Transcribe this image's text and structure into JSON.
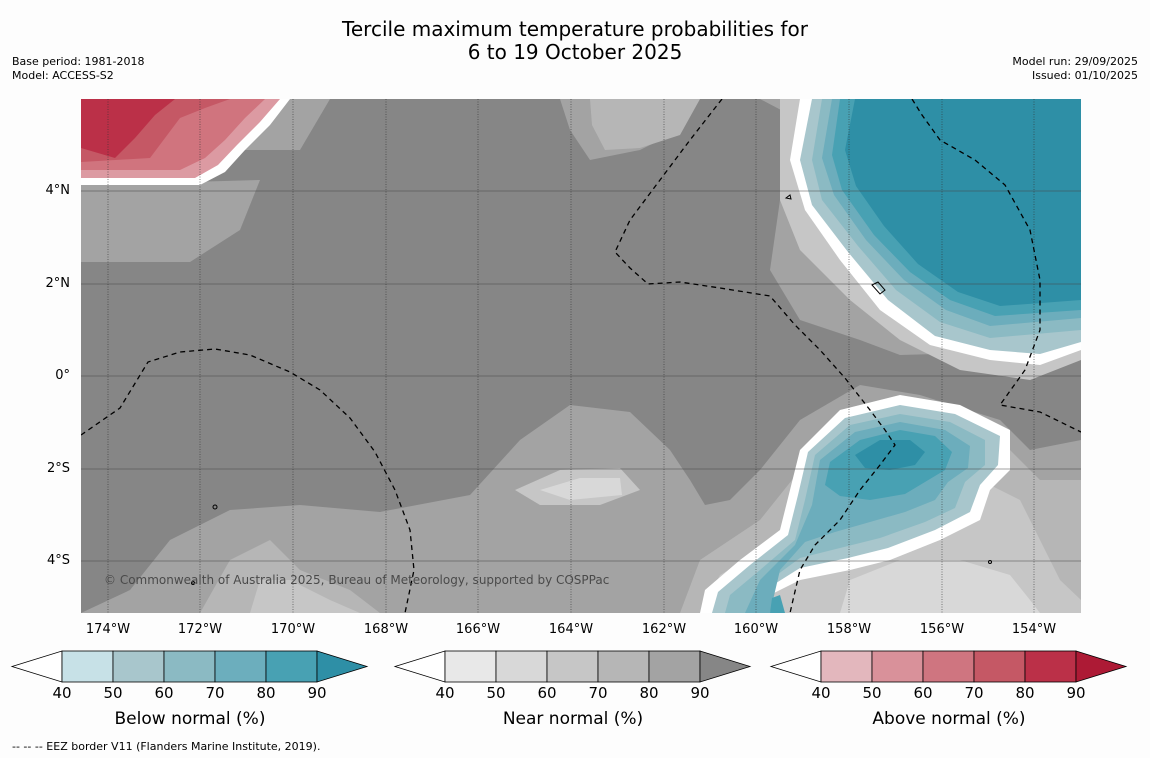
{
  "title": {
    "line1": "Tercile maximum temperature probabilities for",
    "line2": "6 to 19 October 2025"
  },
  "meta": {
    "base_period": "Base period: 1981-2018",
    "model": "Model: ACCESS-S2",
    "model_run": "Model run: 29/09/2025",
    "issued": "Issued: 01/10/2025"
  },
  "map": {
    "latitude_labels": [
      "4°N",
      "2°N",
      "0°",
      "2°S",
      "4°S"
    ],
    "longitude_labels": [
      "174°W",
      "172°W",
      "170°W",
      "168°W",
      "166°W",
      "164°W",
      "162°W",
      "160°W",
      "158°W",
      "156°W",
      "154°W"
    ],
    "copyright": "© Commonwealth of Australia 2025, Bureau of Meteorology, supported by COSPPac",
    "colors": {
      "near_dark": "#868686",
      "near_mid": "#a3a3a3",
      "near_light": "#b6b6b6",
      "near_lighter": "#c6c6c6",
      "near_lightest": "#d8d8d8",
      "below_darkest": "#2e8fa6",
      "below_dark": "#48a1b3",
      "below_mid": "#6cadbc",
      "below_light": "#8bbac3",
      "below_lighter": "#a8c6cc",
      "above_darkest": "#bb3048",
      "above_dark": "#c55865",
      "above_mid": "#d0747e",
      "above_light": "#dc9aa2"
    }
  },
  "colorbars": [
    {
      "label": "Below normal (%)",
      "ticks": [
        "40",
        "50",
        "60",
        "70",
        "80",
        "90"
      ],
      "colors": [
        "#ffffff",
        "#c7e1e7",
        "#a8c6cc",
        "#8bbac3",
        "#6caebd",
        "#48a1b3",
        "#2e8fa6"
      ]
    },
    {
      "label": "Near normal (%)",
      "ticks": [
        "40",
        "50",
        "60",
        "70",
        "80",
        "90"
      ],
      "colors": [
        "#ffffff",
        "#e8e8e8",
        "#d8d8d8",
        "#c6c6c6",
        "#b6b6b6",
        "#a3a3a3",
        "#868686"
      ]
    },
    {
      "label": "Above normal (%)",
      "ticks": [
        "40",
        "50",
        "60",
        "70",
        "80",
        "90"
      ],
      "colors": [
        "#ffffff",
        "#e3b7bd",
        "#d9919a",
        "#cf7580",
        "#c55865",
        "#bb3048",
        "#ad1a35"
      ]
    }
  ],
  "footnote": "--  --  -- EEZ border V11 (Flanders Marine Institute, 2019)."
}
